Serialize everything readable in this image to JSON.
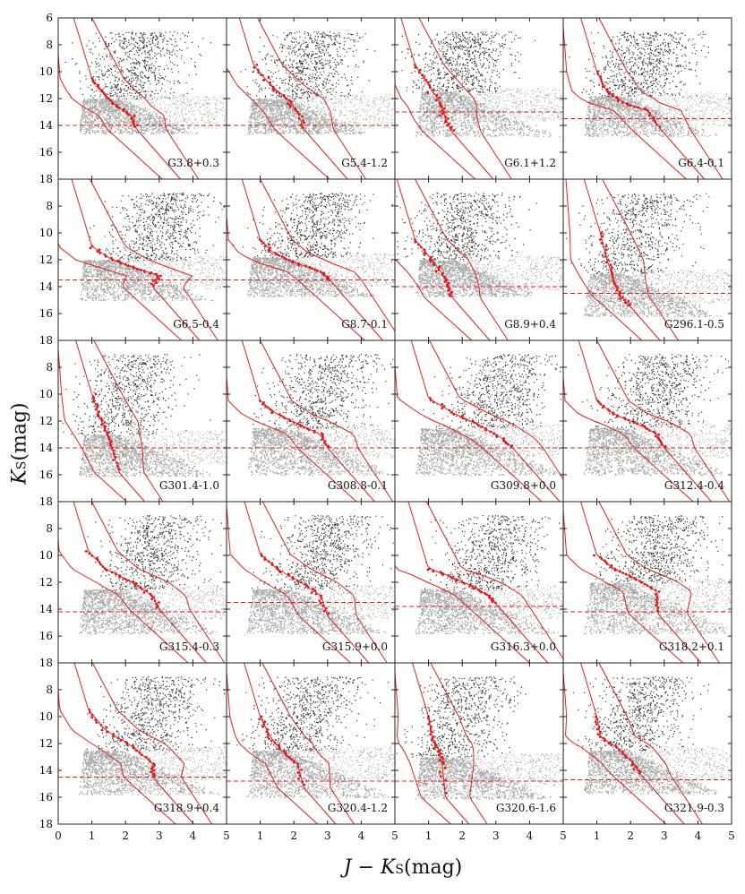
{
  "figure": {
    "ylabel_main": "K",
    "ylabel_sub": "S",
    "ylabel_unit": "(mag)",
    "xlabel_main": "J − K",
    "xlabel_sub": "S",
    "xlabel_unit": "(mag)"
  },
  "chart_data": {
    "type": "scatter",
    "description_kind": "grid of color-magnitude diagrams",
    "rows": 5,
    "cols": 4,
    "xlim": [
      0,
      5
    ],
    "ylim": [
      18,
      6
    ],
    "xticks": [
      0,
      1,
      2,
      3,
      4,
      5
    ],
    "yticks": [
      6,
      8,
      10,
      12,
      14,
      16,
      18
    ],
    "xtick_labels": [
      "0",
      "1",
      "2",
      "3",
      "4",
      "5"
    ],
    "ytick_labels": [
      "6",
      "8",
      "10",
      "12",
      "14",
      "16",
      "18"
    ],
    "colors": {
      "axis": "#222222",
      "black_stars": "#111111",
      "grey_stars": "#8a8a8a",
      "model": "#e02020",
      "red_points": "#e01818"
    },
    "panels": [
      {
        "name": "G3.8+0.3",
        "limit": 14.0,
        "ridge": [
          [
            1.0,
            10.5
          ],
          [
            1.3,
            11.5
          ],
          [
            1.7,
            12.5
          ],
          [
            2.2,
            13.3
          ],
          [
            2.3,
            14.2
          ]
        ],
        "cut": 12.0,
        "greymax": 14.6
      },
      {
        "name": "G5.4-1.2",
        "limit": 14.0,
        "ridge": [
          [
            0.8,
            9.5
          ],
          [
            1.3,
            11.0
          ],
          [
            1.8,
            12.0
          ],
          [
            2.1,
            13.0
          ],
          [
            2.3,
            14.3
          ]
        ],
        "cut": 12.0,
        "greymax": 14.6
      },
      {
        "name": "G6.1+1.2",
        "limit": 13.0,
        "ridge": [
          [
            0.6,
            9.5
          ],
          [
            1.0,
            11.0
          ],
          [
            1.4,
            12.5
          ],
          [
            1.5,
            13.5
          ],
          [
            1.7,
            14.5
          ]
        ],
        "cut": 11.5,
        "greymax": 14.8
      },
      {
        "name": "G6.4-0.1",
        "limit": 13.5,
        "ridge": [
          [
            1.0,
            10.0
          ],
          [
            1.3,
            11.5
          ],
          [
            1.8,
            12.3
          ],
          [
            2.5,
            12.9
          ],
          [
            2.9,
            14.3
          ]
        ],
        "cut": 11.8,
        "greymax": 14.8
      },
      {
        "name": "G6.5-0.4",
        "limit": 13.5,
        "ridge": [
          [
            1.0,
            11.0
          ],
          [
            1.6,
            12.0
          ],
          [
            2.4,
            12.7
          ],
          [
            3.0,
            13.2
          ],
          [
            2.8,
            14.0
          ]
        ],
        "cut": 12.0,
        "greymax": 15.0
      },
      {
        "name": "G8.7-0.1",
        "limit": 13.5,
        "ridge": [
          [
            1.0,
            10.5
          ],
          [
            1.4,
            11.5
          ],
          [
            2.0,
            12.2
          ],
          [
            2.8,
            12.9
          ],
          [
            3.1,
            13.6
          ]
        ],
        "cut": 11.8,
        "greymax": 14.7
      },
      {
        "name": "G8.9+0.4",
        "limit": 14.0,
        "ridge": [
          [
            0.6,
            10.5
          ],
          [
            1.1,
            12.0
          ],
          [
            1.4,
            13.0
          ],
          [
            1.6,
            14.0
          ],
          [
            1.7,
            14.8
          ]
        ],
        "cut": 12.0,
        "greymax": 14.7
      },
      {
        "name": "G296.1-0.5",
        "limit": 14.5,
        "ridge": [
          [
            1.1,
            10.0
          ],
          [
            1.3,
            12.0
          ],
          [
            1.5,
            13.5
          ],
          [
            1.7,
            14.7
          ],
          [
            2.0,
            15.5
          ]
        ],
        "cut": 13.0,
        "greymax": 16.2
      },
      {
        "name": "G301.4-1.0",
        "limit": 14.0,
        "ridge": [
          [
            1.0,
            10.0
          ],
          [
            1.2,
            11.5
          ],
          [
            1.4,
            12.7
          ],
          [
            1.6,
            14.0
          ],
          [
            1.8,
            15.8
          ]
        ],
        "cut": 13.0,
        "greymax": 16.1
      },
      {
        "name": "G308.8-0.1",
        "limit": 14.0,
        "ridge": [
          [
            1.0,
            10.5
          ],
          [
            1.5,
            11.5
          ],
          [
            2.2,
            12.3
          ],
          [
            2.8,
            13.0
          ],
          [
            3.0,
            14.0
          ]
        ],
        "cut": 12.5,
        "greymax": 16.0
      },
      {
        "name": "G309.8+0.0",
        "limit": 14.0,
        "ridge": [
          [
            1.0,
            10.3
          ],
          [
            1.8,
            11.5
          ],
          [
            2.5,
            12.3
          ],
          [
            3.2,
            13.3
          ],
          [
            3.5,
            14.0
          ]
        ],
        "cut": 12.5,
        "greymax": 16.0
      },
      {
        "name": "G312.4-0.4",
        "limit": 14.0,
        "ridge": [
          [
            1.0,
            10.5
          ],
          [
            1.5,
            11.5
          ],
          [
            2.2,
            12.2
          ],
          [
            2.8,
            13.0
          ],
          [
            3.0,
            14.0
          ]
        ],
        "cut": 12.5,
        "greymax": 16.0
      },
      {
        "name": "G315.4-0.3",
        "limit": 14.2,
        "ridge": [
          [
            0.9,
            9.7
          ],
          [
            1.4,
            11.0
          ],
          [
            2.2,
            12.0
          ],
          [
            2.8,
            13.0
          ],
          [
            3.0,
            14.0
          ]
        ],
        "cut": 12.5,
        "greymax": 15.8
      },
      {
        "name": "G315.9+0.0",
        "limit": 13.5,
        "ridge": [
          [
            1.0,
            9.9
          ],
          [
            1.5,
            11.0
          ],
          [
            2.2,
            12.0
          ],
          [
            2.8,
            13.0
          ],
          [
            3.0,
            14.5
          ]
        ],
        "cut": 12.5,
        "greymax": 15.8
      },
      {
        "name": "G316.3+0.0",
        "limit": 13.8,
        "ridge": [
          [
            1.0,
            11.0
          ],
          [
            1.6,
            11.5
          ],
          [
            2.3,
            12.3
          ],
          [
            2.8,
            13.0
          ],
          [
            3.0,
            13.6
          ]
        ],
        "cut": 12.5,
        "greymax": 15.8
      },
      {
        "name": "G318.2+0.1",
        "limit": 14.2,
        "ridge": [
          [
            1.0,
            10.0
          ],
          [
            1.5,
            11.0
          ],
          [
            2.2,
            11.8
          ],
          [
            2.8,
            12.7
          ],
          [
            2.8,
            14.3
          ]
        ],
        "cut": 12.0,
        "greymax": 15.8
      },
      {
        "name": "G318.9+0.4",
        "limit": 14.5,
        "ridge": [
          [
            0.9,
            9.5
          ],
          [
            1.4,
            11.0
          ],
          [
            2.2,
            12.2
          ],
          [
            2.8,
            13.5
          ],
          [
            2.8,
            14.5
          ]
        ],
        "cut": 12.5,
        "greymax": 15.8
      },
      {
        "name": "G320.4-1.2",
        "limit": 14.8,
        "ridge": [
          [
            1.0,
            10.0
          ],
          [
            1.3,
            11.5
          ],
          [
            1.7,
            12.7
          ],
          [
            2.1,
            13.5
          ],
          [
            2.3,
            15.3
          ]
        ],
        "cut": 12.5,
        "greymax": 16.0
      },
      {
        "name": "G320.6-1.6",
        "limit": 14.8,
        "ridge": [
          [
            1.0,
            10.0
          ],
          [
            1.1,
            11.5
          ],
          [
            1.3,
            12.5
          ],
          [
            1.4,
            13.5
          ],
          [
            1.5,
            16.0
          ]
        ],
        "cut": 13.0,
        "greymax": 16.1
      },
      {
        "name": "G321.9-0.3",
        "limit": 14.7,
        "ridge": [
          [
            1.0,
            10.0
          ],
          [
            1.1,
            11.5
          ],
          [
            1.6,
            12.3
          ],
          [
            2.1,
            13.5
          ],
          [
            2.3,
            14.3
          ]
        ],
        "cut": 12.5,
        "greymax": 15.7
      }
    ]
  }
}
